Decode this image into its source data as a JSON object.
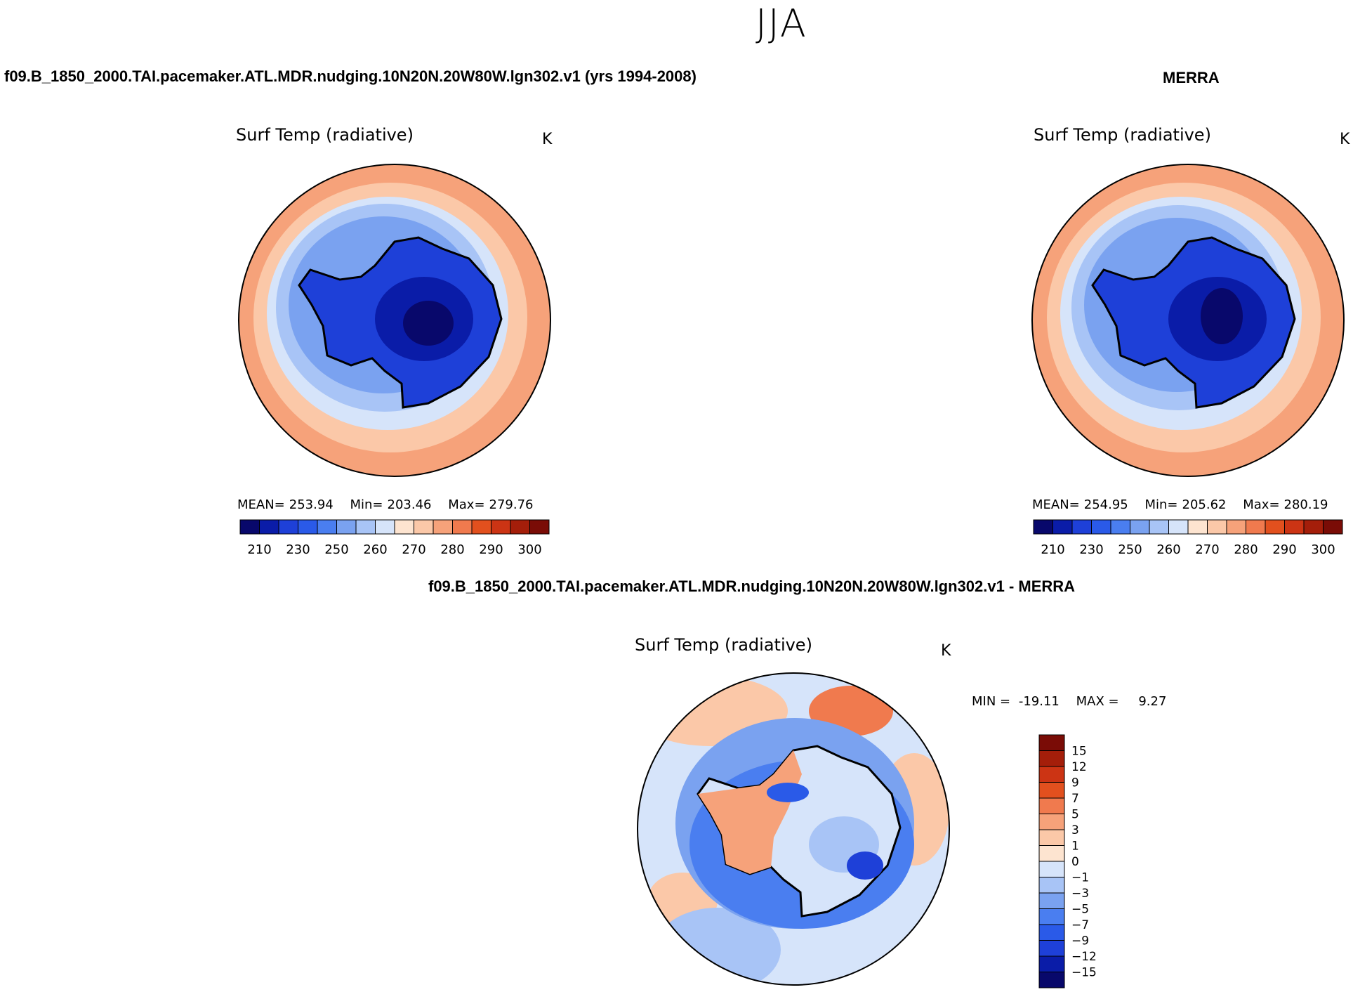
{
  "figure": {
    "season": "JJA",
    "diff_title": "f09.B_1850_2000.TAI.pacemaker.ATL.MDR.nudging.10N20N.20W80W.lgn302.v1 - MERRA",
    "diff_min_label": "MIN =",
    "diff_min": "-19.11",
    "diff_max_label": "MAX =",
    "diff_max": "9.27"
  },
  "panels": [
    {
      "case": "f09.B_1850_2000.TAI.pacemaker.ATL.MDR.nudging.10N20N.20W80W.lgn302.v1 (yrs 1994-2008)",
      "var": "Surf Temp (radiative)",
      "units": "K",
      "mean_label": "MEAN=",
      "mean": "253.94",
      "min_label": "Min=",
      "min": "203.46",
      "max_label": "Max=",
      "max": "279.76"
    },
    {
      "case": "MERRA",
      "var": "Surf Temp (radiative)",
      "units": "K",
      "mean_label": "MEAN=",
      "mean": "254.95",
      "min_label": "Min=",
      "min": "205.62",
      "max_label": "Max=",
      "max": "280.19"
    },
    {
      "var": "Surf Temp (radiative)",
      "units": "K"
    }
  ],
  "chart_data": [
    {
      "type": "heatmap",
      "title": "Surf Temp (radiative)",
      "subtitle": "f09.B_1850_2000.TAI.pacemaker.ATL.MDR.nudging.10N20N.20W80W.lgn302.v1 (yrs 1994-2008)",
      "projection": "south-polar-stereographic",
      "units": "K",
      "stats": {
        "mean": 253.94,
        "min": 203.46,
        "max": 279.76
      },
      "colorbar": {
        "orientation": "horizontal",
        "tick_labels": [
          "210",
          "230",
          "250",
          "260",
          "270",
          "280",
          "290",
          "300"
        ],
        "levels": [
          210,
          220,
          230,
          240,
          250,
          255,
          260,
          265,
          270,
          275,
          280,
          285,
          290,
          295,
          300
        ],
        "colors": [
          "#08086b",
          "#0a1ca8",
          "#1e40d8",
          "#2a5ae8",
          "#4a7ef0",
          "#7aa2f0",
          "#a8c4f6",
          "#d6e4fa",
          "#fde4d0",
          "#fbc8a8",
          "#f6a27a",
          "#f07a4e",
          "#e2501e",
          "#cc3414",
          "#a41e0a",
          "#7a0c06"
        ]
      }
    },
    {
      "type": "heatmap",
      "title": "Surf Temp (radiative)",
      "subtitle": "MERRA",
      "projection": "south-polar-stereographic",
      "units": "K",
      "stats": {
        "mean": 254.95,
        "min": 205.62,
        "max": 280.19
      },
      "colorbar": {
        "orientation": "horizontal",
        "tick_labels": [
          "210",
          "230",
          "250",
          "260",
          "270",
          "280",
          "290",
          "300"
        ],
        "levels": [
          210,
          220,
          230,
          240,
          250,
          255,
          260,
          265,
          270,
          275,
          280,
          285,
          290,
          295,
          300
        ],
        "colors": [
          "#08086b",
          "#0a1ca8",
          "#1e40d8",
          "#2a5ae8",
          "#4a7ef0",
          "#7aa2f0",
          "#a8c4f6",
          "#d6e4fa",
          "#fde4d0",
          "#fbc8a8",
          "#f6a27a",
          "#f07a4e",
          "#e2501e",
          "#cc3414",
          "#a41e0a",
          "#7a0c06"
        ]
      }
    },
    {
      "type": "heatmap",
      "title": "Surf Temp (radiative)",
      "subtitle": "f09.B_1850_2000.TAI.pacemaker.ATL.MDR.nudging.10N20N.20W80W.lgn302.v1 - MERRA",
      "projection": "south-polar-stereographic",
      "units": "K",
      "stats": {
        "min": -19.11,
        "max": 9.27
      },
      "colorbar": {
        "orientation": "vertical",
        "tick_labels": [
          "15",
          "12",
          "9",
          "7",
          "5",
          "3",
          "1",
          "0",
          "-1",
          "-3",
          "-5",
          "-7",
          "-9",
          "-12",
          "-15"
        ],
        "levels": [
          15,
          12,
          9,
          7,
          5,
          3,
          1,
          0,
          -1,
          -3,
          -5,
          -7,
          -9,
          -12,
          -15
        ],
        "colors": [
          "#7a0c06",
          "#a41e0a",
          "#cc3414",
          "#e2501e",
          "#f07a4e",
          "#f6a27a",
          "#fbc8a8",
          "#fde4d0",
          "#d6e4fa",
          "#a8c4f6",
          "#7aa2f0",
          "#4a7ef0",
          "#2a5ae8",
          "#1e40d8",
          "#0a1ca8",
          "#08086b"
        ]
      }
    }
  ]
}
